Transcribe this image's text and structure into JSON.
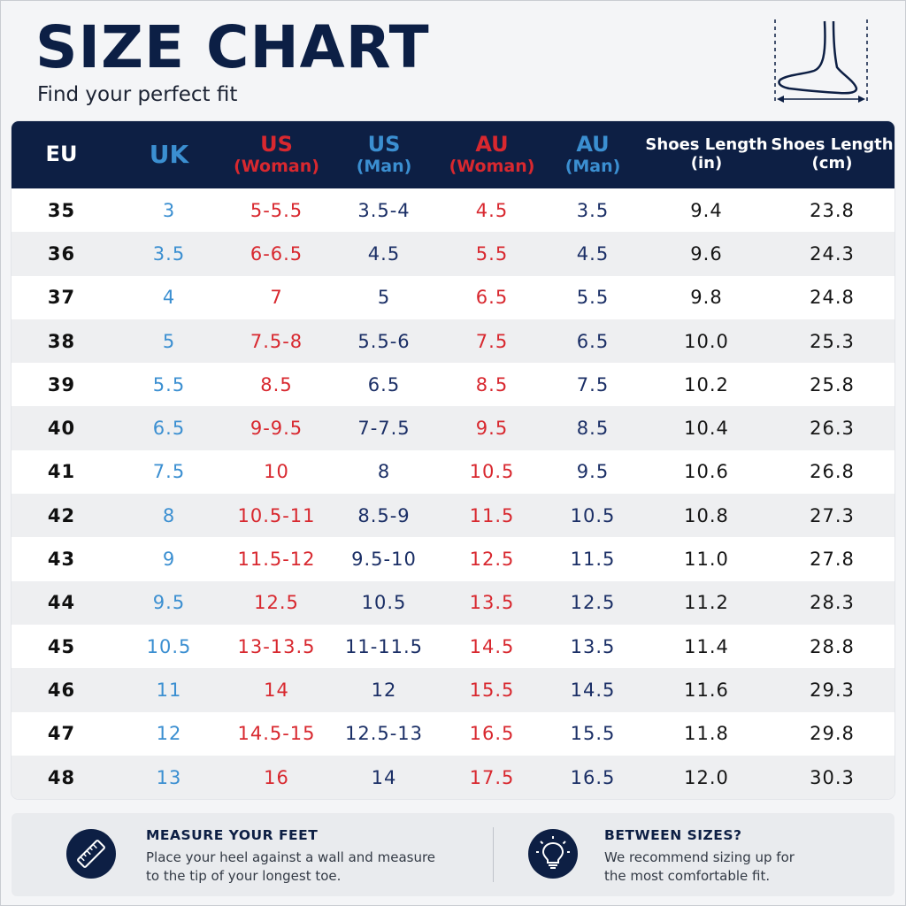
{
  "header": {
    "title": "SIZE CHART",
    "subtitle": "Find your perfect fit",
    "icon": "foot-measure-icon"
  },
  "columns": [
    {
      "line1": "EU",
      "line2": ""
    },
    {
      "line1": "UK",
      "line2": ""
    },
    {
      "line1": "US",
      "line2": "(Woman)"
    },
    {
      "line1": "US",
      "line2": "(Man)"
    },
    {
      "line1": "AU",
      "line2": "(Woman)"
    },
    {
      "line1": "AU",
      "line2": "(Man)"
    },
    {
      "line1": "Shoes Length",
      "line2": "(in)"
    },
    {
      "line1": "Shoes Length",
      "line2": "(cm)"
    }
  ],
  "rows": [
    [
      "35",
      "3",
      "5-5.5",
      "3.5-4",
      "4.5",
      "3.5",
      "9.4",
      "23.8"
    ],
    [
      "36",
      "3.5",
      "6-6.5",
      "4.5",
      "5.5",
      "4.5",
      "9.6",
      "24.3"
    ],
    [
      "37",
      "4",
      "7",
      "5",
      "6.5",
      "5.5",
      "9.8",
      "24.8"
    ],
    [
      "38",
      "5",
      "7.5-8",
      "5.5-6",
      "7.5",
      "6.5",
      "10.0",
      "25.3"
    ],
    [
      "39",
      "5.5",
      "8.5",
      "6.5",
      "8.5",
      "7.5",
      "10.2",
      "25.8"
    ],
    [
      "40",
      "6.5",
      "9-9.5",
      "7-7.5",
      "9.5",
      "8.5",
      "10.4",
      "26.3"
    ],
    [
      "41",
      "7.5",
      "10",
      "8",
      "10.5",
      "9.5",
      "10.6",
      "26.8"
    ],
    [
      "42",
      "8",
      "10.5-11",
      "8.5-9",
      "11.5",
      "10.5",
      "10.8",
      "27.3"
    ],
    [
      "43",
      "9",
      "11.5-12",
      "9.5-10",
      "12.5",
      "11.5",
      "11.0",
      "27.8"
    ],
    [
      "44",
      "9.5",
      "12.5",
      "10.5",
      "13.5",
      "12.5",
      "11.2",
      "28.3"
    ],
    [
      "45",
      "10.5",
      "13-13.5",
      "11-11.5",
      "14.5",
      "13.5",
      "11.4",
      "28.8"
    ],
    [
      "46",
      "11",
      "14",
      "12",
      "15.5",
      "14.5",
      "11.6",
      "29.3"
    ],
    [
      "47",
      "12",
      "14.5-15",
      "12.5-13",
      "16.5",
      "15.5",
      "11.8",
      "29.8"
    ],
    [
      "48",
      "13",
      "16",
      "14",
      "17.5",
      "16.5",
      "12.0",
      "30.3"
    ]
  ],
  "tips": [
    {
      "icon": "ruler-icon",
      "heading": "MEASURE YOUR FEET",
      "line1": "Place your heel against a wall and measure",
      "line2": "to the tip of your longest toe."
    },
    {
      "icon": "lightbulb-icon",
      "heading": "BETWEEN SIZES?",
      "line1": "We recommend sizing up for",
      "line2": "the most comfortable fit."
    }
  ],
  "colors": {
    "navy": "#0d1f44",
    "blue": "#3b8fd1",
    "red": "#d8282f",
    "dark_blue": "#1b2f66"
  }
}
